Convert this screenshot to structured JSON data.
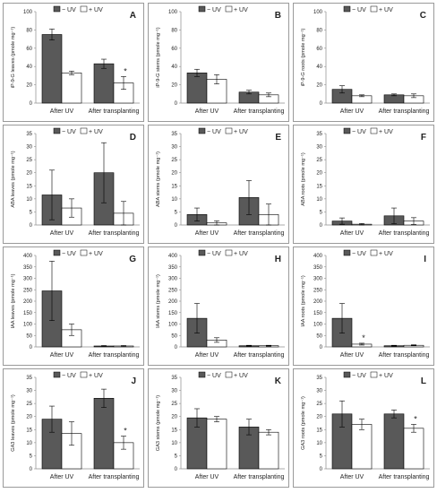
{
  "legend": {
    "minus_uv": "− UV",
    "plus_uv": "+ UV"
  },
  "colors": {
    "minus_uv": "#595959",
    "plus_uv": "#ffffff",
    "axis": "#8c8c8c",
    "bar_stroke": "#000000"
  },
  "chart_data": [
    {
      "type": "bar",
      "panel_letter": "A",
      "ylabel": "iP-9-G leaves (pmole mg⁻¹)",
      "ylim": [
        0,
        100
      ],
      "ticks": [
        0,
        20,
        40,
        60,
        80,
        100
      ],
      "categories": [
        "After UV",
        "After transplanting"
      ],
      "series": [
        {
          "name": "− UV",
          "values": [
            75,
            43
          ],
          "errors": [
            6,
            5
          ]
        },
        {
          "name": "+ UV",
          "values": [
            33,
            22
          ],
          "errors": [
            2,
            7
          ]
        }
      ],
      "annotations": [
        {
          "category": 1,
          "series": 1,
          "text": "*"
        }
      ],
      "legend_position": "top"
    },
    {
      "type": "bar",
      "panel_letter": "B",
      "ylabel": "iP-9-G stems (pmole mg⁻¹)",
      "ylim": [
        0,
        100
      ],
      "ticks": [
        0,
        20,
        40,
        60,
        80,
        100
      ],
      "categories": [
        "After UV",
        "After transplanting"
      ],
      "series": [
        {
          "name": "− UV",
          "values": [
            33,
            12
          ],
          "errors": [
            4,
            2
          ]
        },
        {
          "name": "+ UV",
          "values": [
            26,
            9
          ],
          "errors": [
            5,
            2
          ]
        }
      ],
      "annotations": [],
      "legend_position": "top"
    },
    {
      "type": "bar",
      "panel_letter": "C",
      "ylabel": "iP-9-G roots (pmole mg⁻¹)",
      "ylim": [
        0,
        100
      ],
      "ticks": [
        0,
        20,
        40,
        60,
        80,
        100
      ],
      "categories": [
        "After UV",
        "After transplanting"
      ],
      "series": [
        {
          "name": "− UV",
          "values": [
            15,
            9
          ],
          "errors": [
            4,
            1
          ]
        },
        {
          "name": "+ UV",
          "values": [
            8,
            8
          ],
          "errors": [
            1,
            2
          ]
        }
      ],
      "annotations": [],
      "legend_position": "top"
    },
    {
      "type": "bar",
      "panel_letter": "D",
      "ylabel": "ABA leaves (pmole mg⁻¹)",
      "ylim": [
        0,
        35
      ],
      "ticks": [
        0,
        5,
        10,
        15,
        20,
        25,
        30,
        35
      ],
      "categories": [
        "After UV",
        "After transplanting"
      ],
      "series": [
        {
          "name": "− UV",
          "values": [
            11.5,
            20
          ],
          "errors": [
            9.5,
            11.5
          ]
        },
        {
          "name": "+ UV",
          "values": [
            6.5,
            4.5
          ],
          "errors": [
            3.5,
            4.5
          ]
        }
      ],
      "annotations": [],
      "legend_position": "top"
    },
    {
      "type": "bar",
      "panel_letter": "E",
      "ylabel": "ABA stems (pmole mg⁻¹)",
      "ylim": [
        0,
        35
      ],
      "ticks": [
        0,
        5,
        10,
        15,
        20,
        25,
        30,
        35
      ],
      "categories": [
        "After UV",
        "After transplanting"
      ],
      "series": [
        {
          "name": "− UV",
          "values": [
            4,
            10.5
          ],
          "errors": [
            2.5,
            6.5
          ]
        },
        {
          "name": "+ UV",
          "values": [
            0.8,
            4
          ],
          "errors": [
            0.8,
            4
          ]
        }
      ],
      "annotations": [],
      "legend_position": "top"
    },
    {
      "type": "bar",
      "panel_letter": "F",
      "ylabel": "ABA roots (pmole mg⁻¹)",
      "ylim": [
        0,
        35
      ],
      "ticks": [
        0,
        5,
        10,
        15,
        20,
        25,
        30,
        35
      ],
      "categories": [
        "After UV",
        "After transplanting"
      ],
      "series": [
        {
          "name": "− UV",
          "values": [
            1.5,
            3.5
          ],
          "errors": [
            1.2,
            3
          ]
        },
        {
          "name": "+ UV",
          "values": [
            0.3,
            1.5
          ],
          "errors": [
            0.3,
            1.3
          ]
        }
      ],
      "annotations": [],
      "legend_position": "top"
    },
    {
      "type": "bar",
      "panel_letter": "G",
      "ylabel": "IAA leaves (pmole mg⁻¹)",
      "ylim": [
        0,
        400
      ],
      "ticks": [
        0,
        50,
        100,
        150,
        200,
        250,
        300,
        350,
        400
      ],
      "categories": [
        "After UV",
        "After transplanting"
      ],
      "series": [
        {
          "name": "− UV",
          "values": [
            245,
            4
          ],
          "errors": [
            130,
            2
          ]
        },
        {
          "name": "+ UV",
          "values": [
            75,
            4
          ],
          "errors": [
            25,
            2
          ]
        }
      ],
      "annotations": [],
      "legend_position": "top"
    },
    {
      "type": "bar",
      "panel_letter": "H",
      "ylabel": "IAA stems (pmole mg⁻¹)",
      "ylim": [
        0,
        400
      ],
      "ticks": [
        0,
        50,
        100,
        150,
        200,
        250,
        300,
        350,
        400
      ],
      "categories": [
        "After UV",
        "After transplanting"
      ],
      "series": [
        {
          "name": "− UV",
          "values": [
            125,
            5
          ],
          "errors": [
            65,
            2
          ]
        },
        {
          "name": "+ UV",
          "values": [
            30,
            5
          ],
          "errors": [
            10,
            2
          ]
        }
      ],
      "annotations": [],
      "legend_position": "top"
    },
    {
      "type": "bar",
      "panel_letter": "I",
      "ylabel": "IAA roots (pmole mg⁻¹)",
      "ylim": [
        0,
        400
      ],
      "ticks": [
        0,
        50,
        100,
        150,
        200,
        250,
        300,
        350,
        400
      ],
      "categories": [
        "After UV",
        "After transplanting"
      ],
      "series": [
        {
          "name": "− UV",
          "values": [
            125,
            5
          ],
          "errors": [
            65,
            2
          ]
        },
        {
          "name": "+ UV",
          "values": [
            12,
            7
          ],
          "errors": [
            4,
            2
          ]
        }
      ],
      "annotations": [
        {
          "category": 0,
          "series": 1,
          "text": "*"
        }
      ],
      "legend_position": "top"
    },
    {
      "type": "bar",
      "panel_letter": "J",
      "ylabel": "GA3 leaves (pmole mg⁻¹)",
      "ylim": [
        0,
        35
      ],
      "ticks": [
        0,
        5,
        10,
        15,
        20,
        25,
        30,
        35
      ],
      "categories": [
        "After UV",
        "After transplanting"
      ],
      "series": [
        {
          "name": "− UV",
          "values": [
            19,
            27
          ],
          "errors": [
            5,
            3.5
          ]
        },
        {
          "name": "+ UV",
          "values": [
            13.5,
            10
          ],
          "errors": [
            4.5,
            2.5
          ]
        }
      ],
      "annotations": [
        {
          "category": 1,
          "series": 1,
          "text": "*"
        }
      ],
      "legend_position": "top"
    },
    {
      "type": "bar",
      "panel_letter": "K",
      "ylabel": "GA3 stems (pmole mg⁻¹)",
      "ylim": [
        0,
        35
      ],
      "ticks": [
        0,
        5,
        10,
        15,
        20,
        25,
        30,
        35
      ],
      "categories": [
        "After UV",
        "After transplanting"
      ],
      "series": [
        {
          "name": "− UV",
          "values": [
            19.5,
            16
          ],
          "errors": [
            3.5,
            3
          ]
        },
        {
          "name": "+ UV",
          "values": [
            19,
            14
          ],
          "errors": [
            1,
            1
          ]
        }
      ],
      "annotations": [],
      "legend_position": "top"
    },
    {
      "type": "bar",
      "panel_letter": "L",
      "ylabel": "GA3 roots (pmole mg⁻¹)",
      "ylim": [
        0,
        35
      ],
      "ticks": [
        0,
        5,
        10,
        15,
        20,
        25,
        30,
        35
      ],
      "categories": [
        "After UV",
        "After transplanting"
      ],
      "series": [
        {
          "name": "− UV",
          "values": [
            21,
            21
          ],
          "errors": [
            5,
            1.5
          ]
        },
        {
          "name": "+ UV",
          "values": [
            17,
            15.5
          ],
          "errors": [
            2,
            1.5
          ]
        }
      ],
      "annotations": [
        {
          "category": 1,
          "series": 1,
          "text": "*"
        }
      ],
      "legend_position": "top"
    }
  ]
}
